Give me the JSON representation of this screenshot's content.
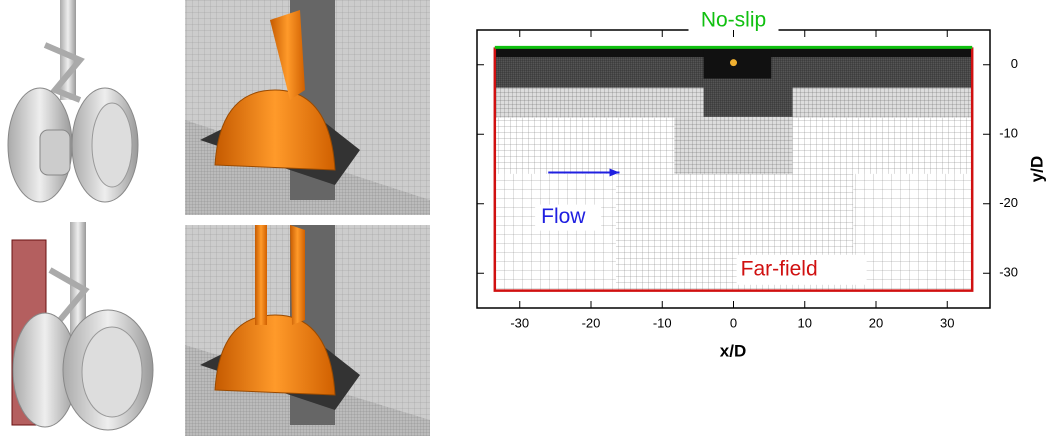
{
  "chart_data": {
    "type": "mesh",
    "xlabel": "x/D",
    "ylabel": "y/D",
    "xlim": [
      -36,
      36
    ],
    "ylim": [
      -35,
      5
    ],
    "xticks": [
      -30,
      -20,
      -10,
      0,
      10,
      20,
      30
    ],
    "yticks": [
      0,
      -10,
      -20,
      -30
    ],
    "annotations": {
      "top": "No-slip",
      "flow": "Flow",
      "boundary": "Far-field"
    }
  }
}
